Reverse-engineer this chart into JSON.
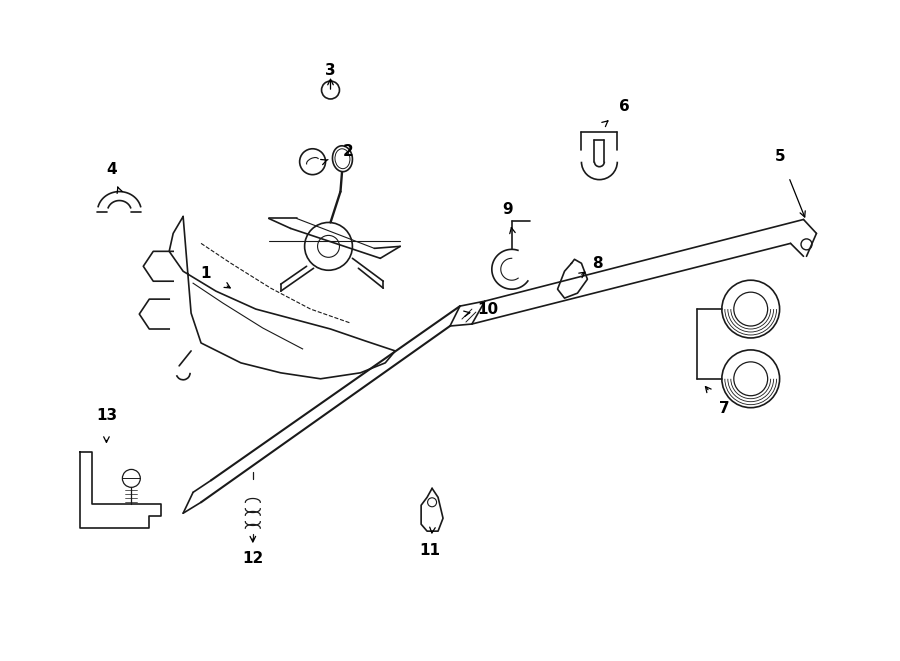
{
  "background_color": "#ffffff",
  "line_color": "#1a1a1a",
  "text_color": "#000000",
  "fig_width": 9.0,
  "fig_height": 6.61
}
